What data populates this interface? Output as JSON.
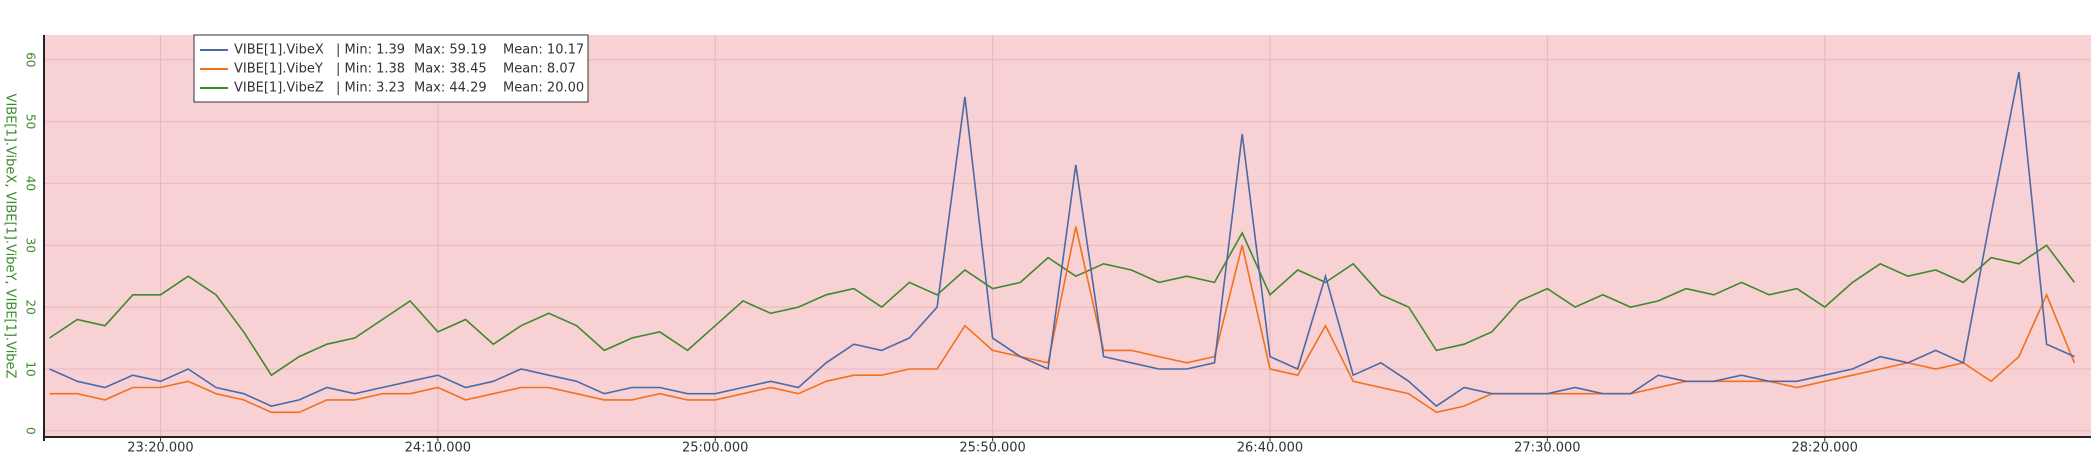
{
  "chart_data": {
    "type": "line",
    "ylabel": "VIBE[1].VibeX, VIBE[1].VibeY, VIBE[1].VibeZ",
    "x": [
      1380,
      1385,
      1390,
      1395,
      1400,
      1405,
      1410,
      1415,
      1420,
      1425,
      1430,
      1435,
      1440,
      1445,
      1450,
      1455,
      1460,
      1465,
      1470,
      1475,
      1480,
      1485,
      1490,
      1495,
      1500,
      1505,
      1510,
      1515,
      1520,
      1525,
      1530,
      1535,
      1540,
      1545,
      1550,
      1555,
      1560,
      1565,
      1570,
      1575,
      1580,
      1585,
      1590,
      1595,
      1600,
      1605,
      1610,
      1615,
      1620,
      1625,
      1630,
      1635,
      1640,
      1645,
      1650,
      1655,
      1660,
      1665,
      1670,
      1675,
      1680,
      1685,
      1690,
      1695,
      1700,
      1705,
      1710,
      1715,
      1720,
      1725,
      1730,
      1735,
      1740,
      1745
    ],
    "series": [
      {
        "name": "VIBE[1].VibeX",
        "color": "#4a6aa8",
        "legend_stats": [
          "| Min: 1.39",
          "Max: 59.19",
          "Mean: 10.17"
        ],
        "values": [
          10,
          8,
          7,
          9,
          8,
          10,
          7,
          6,
          4,
          5,
          7,
          6,
          7,
          8,
          9,
          7,
          8,
          10,
          9,
          8,
          6,
          7,
          7,
          6,
          6,
          7,
          8,
          7,
          11,
          14,
          13,
          15,
          20,
          54,
          15,
          12,
          10,
          43,
          12,
          11,
          10,
          10,
          11,
          48,
          12,
          10,
          25,
          9,
          11,
          8,
          4,
          7,
          6,
          6,
          6,
          7,
          6,
          6,
          9,
          8,
          8,
          9,
          8,
          8,
          9,
          10,
          12,
          11,
          13,
          11,
          35,
          58,
          14,
          12
        ]
      },
      {
        "name": "VIBE[1].VibeY",
        "color": "#f2711c",
        "legend_stats": [
          "| Min: 1.38",
          "Max: 38.45",
          "Mean: 8.07"
        ],
        "values": [
          6,
          6,
          5,
          7,
          7,
          8,
          6,
          5,
          3,
          3,
          5,
          5,
          6,
          6,
          7,
          5,
          6,
          7,
          7,
          6,
          5,
          5,
          6,
          5,
          5,
          6,
          7,
          6,
          8,
          9,
          9,
          10,
          10,
          17,
          13,
          12,
          11,
          33,
          13,
          13,
          12,
          11,
          12,
          30,
          10,
          9,
          17,
          8,
          7,
          6,
          3,
          4,
          6,
          6,
          6,
          6,
          6,
          6,
          7,
          8,
          8,
          8,
          8,
          7,
          8,
          9,
          10,
          11,
          10,
          11,
          8,
          12,
          22,
          11
        ]
      },
      {
        "name": "VIBE[1].VibeZ",
        "color": "#3d8a2c",
        "legend_stats": [
          "| Min: 3.23",
          "Max: 44.29",
          "Mean: 20.00"
        ],
        "values": [
          15,
          18,
          17,
          22,
          22,
          25,
          22,
          16,
          9,
          12,
          14,
          15,
          18,
          21,
          16,
          18,
          14,
          17,
          19,
          17,
          13,
          15,
          16,
          13,
          17,
          21,
          19,
          20,
          22,
          23,
          20,
          24,
          22,
          26,
          23,
          24,
          28,
          25,
          27,
          26,
          24,
          25,
          24,
          32,
          22,
          26,
          24,
          27,
          22,
          20,
          13,
          14,
          16,
          21,
          23,
          20,
          22,
          20,
          21,
          23,
          22,
          24,
          22,
          23,
          20,
          24,
          27,
          25,
          26,
          24,
          28,
          27,
          30,
          24
        ]
      }
    ],
    "xlim": [
      1379,
      1748
    ],
    "xticks": [
      {
        "value": 1400,
        "label": "23:20.000"
      },
      {
        "value": 1450,
        "label": "24:10.000"
      },
      {
        "value": 1500,
        "label": "25:00.000"
      },
      {
        "value": 1550,
        "label": "25:50.000"
      },
      {
        "value": 1600,
        "label": "26:40.000"
      },
      {
        "value": 1650,
        "label": "27:30.000"
      },
      {
        "value": 1700,
        "label": "28:20.000"
      }
    ],
    "ylim": [
      -1,
      64
    ],
    "yticks": [
      0,
      10,
      20,
      30,
      40,
      50,
      60
    ],
    "grid": true,
    "background": "#f8d1d4",
    "legend": "top-left"
  }
}
